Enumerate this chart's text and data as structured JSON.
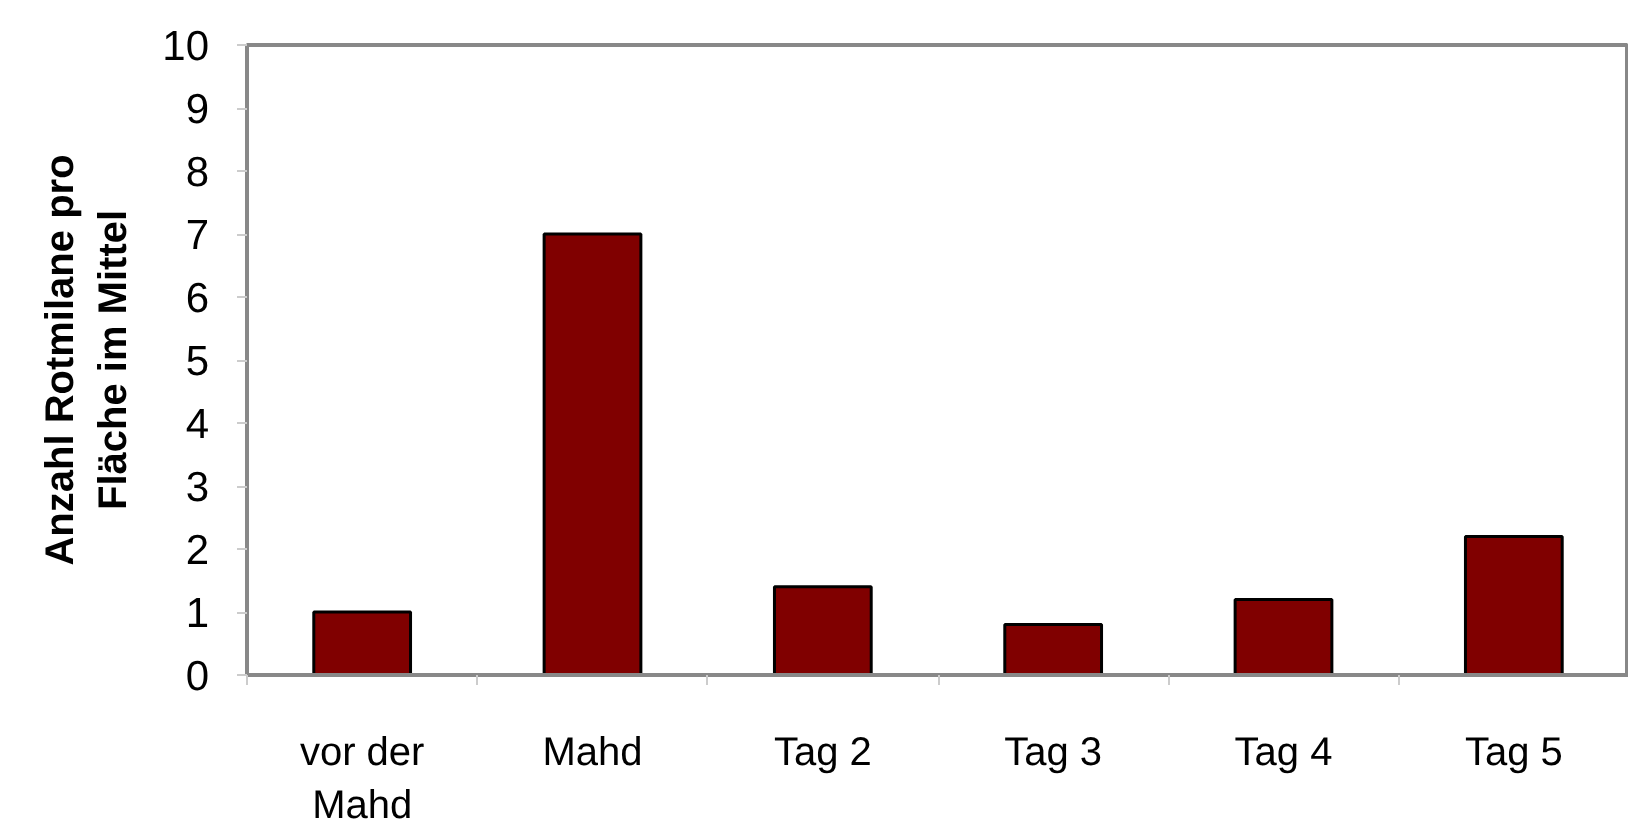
{
  "chart_data": {
    "type": "bar",
    "ylabel": "Anzahl Rotmilane pro Fläche im Mittel",
    "categories": [
      "vor der Mahd",
      "Mahd",
      "Tag 2",
      "Tag 3",
      "Tag 4",
      "Tag 5"
    ],
    "values": [
      1.0,
      7.0,
      1.4,
      0.8,
      1.2,
      2.2
    ],
    "color": "#800000",
    "ylim": [
      0,
      10
    ],
    "yticks": [
      0,
      1,
      2,
      3,
      4,
      5,
      6,
      7,
      8,
      9,
      10
    ]
  }
}
